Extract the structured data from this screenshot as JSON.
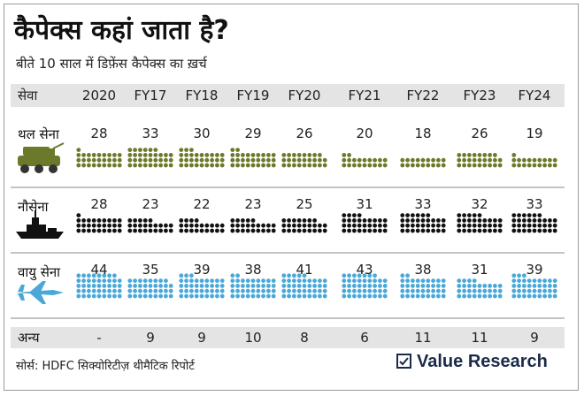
{
  "title": "कैपेक्स कहां जाता है?",
  "subtitle": "बीते 10 साल में डिफ़ेंस कैपेक्स का ख़र्च",
  "source": "सोर्स: HDFC सिक्योरिटीज़ थीमैटिक रिपोर्ट",
  "brand": "Value Research",
  "header": {
    "label": "सेवा",
    "columns": [
      "2020",
      "FY17",
      "FY18",
      "FY19",
      "FY20",
      "FY21",
      "FY22",
      "FY23",
      "FY24"
    ]
  },
  "colors": {
    "army": "#6b7a2a",
    "navy": "#111111",
    "airforce": "#4aa8d8",
    "band": "#e4e4e4"
  },
  "icons": [
    "tank-icon",
    "warship-icon",
    "fighter-jet-icon",
    "check-box-icon"
  ],
  "chart_data": {
    "type": "table",
    "categories": [
      "2020",
      "FY17",
      "FY18",
      "FY19",
      "FY20",
      "FY21",
      "FY22",
      "FY23",
      "FY24"
    ],
    "series": [
      {
        "name": "थल सेना",
        "values": [
          28,
          33,
          30,
          29,
          26,
          20,
          18,
          26,
          19
        ]
      },
      {
        "name": "नौसेना",
        "values": [
          28,
          23,
          22,
          23,
          25,
          31,
          33,
          32,
          33
        ]
      },
      {
        "name": "वायु सेना",
        "values": [
          44,
          35,
          39,
          38,
          41,
          43,
          38,
          31,
          39
        ]
      },
      {
        "name": "अन्य",
        "values": [
          "-",
          9,
          9,
          10,
          8,
          6,
          11,
          11,
          9
        ]
      }
    ]
  }
}
